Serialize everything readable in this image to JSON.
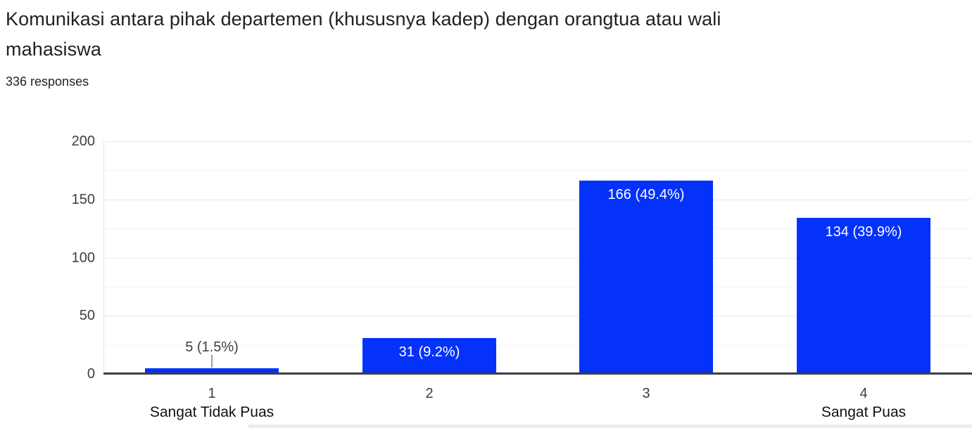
{
  "header": {
    "title": "Komunikasi antara pihak departemen (khususnya kadep) dengan orangtua atau wali\nmahasiswa",
    "responses_count": "336 responses"
  },
  "chart_data": {
    "type": "bar",
    "title": "Komunikasi antara pihak departemen (khususnya kadep) dengan orangtua atau wali mahasiswa",
    "subtitle": "336 responses",
    "categories": [
      "1",
      "2",
      "3",
      "4"
    ],
    "category_sublabels": [
      "Sangat Tidak Puas",
      "",
      "",
      "Sangat Puas"
    ],
    "values": [
      5,
      31,
      166,
      134
    ],
    "value_labels": [
      "5 (1.5%)",
      "31 (9.2%)",
      "166 (49.4%)",
      "134 (39.9%)"
    ],
    "xlabel": "",
    "ylabel": "",
    "ylim": [
      0,
      200
    ],
    "yticks": [
      0,
      50,
      100,
      150,
      200
    ],
    "minor_yticks": [
      25,
      75,
      125,
      175
    ],
    "grid": true,
    "legend": "none",
    "colors": {
      "bar": "#0432fa",
      "label_inside": "#ffffff",
      "label_outside": "#3c4043",
      "axis_line": "#3b3e42",
      "gridline_major": "#e8e8e8",
      "gridline_minor": "#f4f4f4",
      "connector": "#9e9e9e",
      "divider": "#ececec",
      "text": "#202124"
    }
  }
}
